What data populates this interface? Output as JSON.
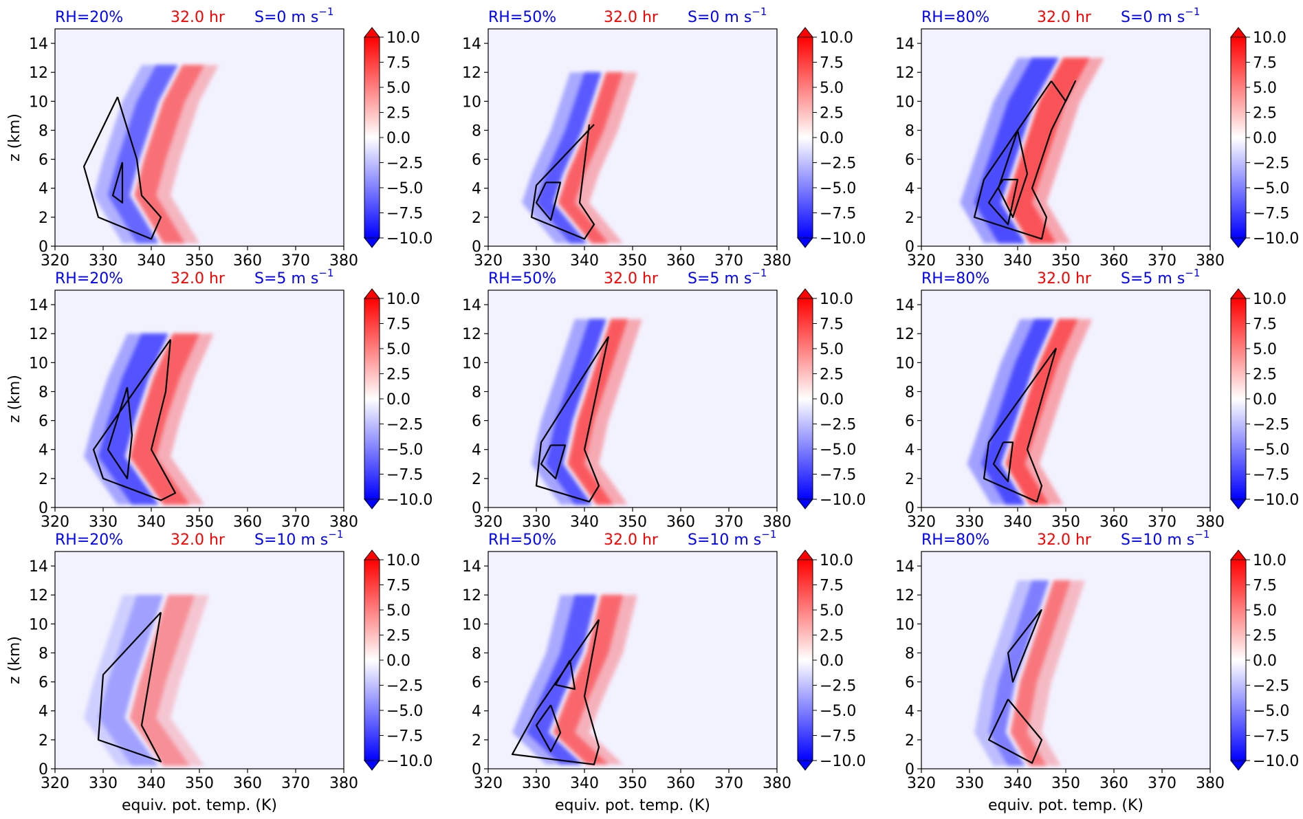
{
  "figure": {
    "xlabel": "equiv. pot. temp. (K)",
    "ylabel": "z (km)",
    "time_label": "32.0 hr"
  },
  "colors": {
    "title_blue": "#0000ff",
    "title_red": "#ff0000",
    "neg": "#0000ff",
    "pos": "#ff0000",
    "background_field": "#f2f2ff",
    "contour": "#000000"
  },
  "colorbar": {
    "ticks": [
      "10.0",
      "7.5",
      "5.0",
      "2.5",
      "0.0",
      "−2.5",
      "−5.0",
      "−7.5",
      "−10.0"
    ],
    "range": [
      -10,
      10
    ],
    "extend": "both"
  },
  "chart_data": [
    {
      "type": "heatmap",
      "rh_label": "RH=20%",
      "time_label": "32.0 hr",
      "shear_label": "S=0 m s",
      "shear_exp": "−1",
      "xlim": [
        320,
        380
      ],
      "ylim": [
        0,
        15
      ],
      "xticks": [
        "320",
        "330",
        "340",
        "350",
        "360",
        "370",
        "380"
      ],
      "yticks": [
        "0",
        "2",
        "4",
        "6",
        "8",
        "10",
        "12",
        "14"
      ],
      "xlabel": "",
      "ylabel": "z (km)",
      "spine": [
        [
          342,
          0.2
        ],
        [
          336,
          3.5
        ],
        [
          338,
          6
        ],
        [
          342,
          10
        ],
        [
          346,
          12.5
        ]
      ],
      "width": 5,
      "neg_int": 0.75,
      "pos_int": 0.7,
      "contours": [
        [
          [
            333,
            10.3
          ],
          [
            326,
            5.5
          ],
          [
            329,
            2
          ],
          [
            340,
            0.5
          ],
          [
            342,
            2
          ],
          [
            338,
            3.5
          ],
          [
            337,
            6
          ],
          [
            333,
            10.3
          ]
        ],
        [
          [
            334,
            5.8
          ],
          [
            332,
            3.5
          ],
          [
            334,
            3
          ],
          [
            334,
            5.8
          ]
        ]
      ]
    },
    {
      "type": "heatmap",
      "rh_label": "RH=50%",
      "time_label": "32.0 hr",
      "shear_label": "S=0 m s",
      "shear_exp": "−1",
      "xlim": [
        320,
        380
      ],
      "ylim": [
        0,
        15
      ],
      "xticks": [
        "320",
        "330",
        "340",
        "350",
        "360",
        "370",
        "380"
      ],
      "yticks": [
        "0",
        "2",
        "4",
        "6",
        "8",
        "10",
        "12",
        "14"
      ],
      "xlabel": "",
      "ylabel": "",
      "spine": [
        [
          341,
          0.2
        ],
        [
          334,
          3
        ],
        [
          336,
          5
        ],
        [
          340,
          8
        ],
        [
          344,
          12
        ]
      ],
      "width": 4,
      "neg_int": 0.85,
      "pos_int": 0.8,
      "contours": [
        [
          [
            342,
            8.4
          ],
          [
            330,
            4.2
          ],
          [
            329,
            2
          ],
          [
            340,
            0.5
          ],
          [
            342,
            1.5
          ],
          [
            339,
            3
          ],
          [
            341,
            8.4
          ]
        ],
        [
          [
            332,
            4.4
          ],
          [
            330,
            3
          ],
          [
            333,
            1.8
          ],
          [
            335,
            4.4
          ],
          [
            332,
            4.4
          ]
        ]
      ]
    },
    {
      "type": "heatmap",
      "rh_label": "RH=80%",
      "time_label": "32.0 hr",
      "shear_label": "S=0 m s",
      "shear_exp": "−1",
      "xlim": [
        320,
        380
      ],
      "ylim": [
        0,
        15
      ],
      "xticks": [
        "320",
        "330",
        "340",
        "350",
        "360",
        "370",
        "380"
      ],
      "yticks": [
        "0",
        "2",
        "4",
        "6",
        "8",
        "10",
        "12",
        "14"
      ],
      "xlabel": "",
      "ylabel": "",
      "spine": [
        [
          342,
          0.2
        ],
        [
          337,
          3
        ],
        [
          340,
          6
        ],
        [
          344,
          10
        ],
        [
          349,
          13
        ]
      ],
      "width": 6,
      "neg_int": 0.95,
      "pos_int": 0.9,
      "contours": [
        [
          [
            347,
            11.4
          ],
          [
            333,
            4.6
          ],
          [
            331,
            2
          ],
          [
            345,
            0.5
          ],
          [
            346,
            2
          ],
          [
            343,
            4
          ],
          [
            347,
            8
          ],
          [
            352,
            11.4
          ],
          [
            350,
            10
          ],
          [
            347,
            11.4
          ]
        ],
        [
          [
            337,
            4.6
          ],
          [
            334,
            3
          ],
          [
            338,
            1.5
          ],
          [
            340,
            4.6
          ],
          [
            337,
            4.6
          ]
        ],
        [
          [
            340,
            8
          ],
          [
            336,
            4
          ],
          [
            339,
            2
          ],
          [
            342,
            5
          ],
          [
            340,
            8
          ]
        ]
      ]
    },
    {
      "type": "heatmap",
      "rh_label": "RH=20%",
      "time_label": "32.0 hr",
      "shear_label": "S=5 m s",
      "shear_exp": "−1",
      "xlim": [
        320,
        380
      ],
      "ylim": [
        0,
        15
      ],
      "xticks": [
        "320",
        "330",
        "340",
        "350",
        "360",
        "370",
        "380"
      ],
      "yticks": [
        "0",
        "2",
        "4",
        "6",
        "8",
        "10",
        "12",
        "14"
      ],
      "xlabel": "",
      "ylabel": "z (km)",
      "spine": [
        [
          342,
          0.2
        ],
        [
          335,
          3.5
        ],
        [
          337,
          6
        ],
        [
          340,
          9
        ],
        [
          344,
          12
        ]
      ],
      "width": 6,
      "neg_int": 0.9,
      "pos_int": 0.8,
      "contours": [
        [
          [
            344,
            11.6
          ],
          [
            328,
            4
          ],
          [
            330,
            2
          ],
          [
            342,
            0.5
          ],
          [
            345,
            1
          ],
          [
            340,
            4
          ],
          [
            343,
            8
          ],
          [
            344,
            11.6
          ]
        ],
        [
          [
            335,
            8.3
          ],
          [
            331,
            4
          ],
          [
            335,
            2
          ],
          [
            336,
            5
          ],
          [
            335,
            8.3
          ]
        ]
      ]
    },
    {
      "type": "heatmap",
      "rh_label": "RH=50%",
      "time_label": "32.0 hr",
      "shear_label": "S=5 m s",
      "shear_exp": "−1",
      "xlim": [
        320,
        380
      ],
      "ylim": [
        0,
        15
      ],
      "xticks": [
        "320",
        "330",
        "340",
        "350",
        "360",
        "370",
        "380"
      ],
      "yticks": [
        "0",
        "2",
        "4",
        "6",
        "8",
        "10",
        "12",
        "14"
      ],
      "xlabel": "",
      "ylabel": "",
      "spine": [
        [
          342,
          0.2
        ],
        [
          336,
          3
        ],
        [
          338,
          6
        ],
        [
          341,
          9
        ],
        [
          345,
          13
        ]
      ],
      "width": 4,
      "neg_int": 0.9,
      "pos_int": 0.85,
      "contours": [
        [
          [
            345,
            11.8
          ],
          [
            331,
            4.5
          ],
          [
            330,
            1.5
          ],
          [
            341,
            0.4
          ],
          [
            343,
            1.5
          ],
          [
            340,
            4
          ],
          [
            345,
            11.8
          ]
        ],
        [
          [
            333,
            4.3
          ],
          [
            331,
            3
          ],
          [
            334,
            2
          ],
          [
            336,
            4.3
          ],
          [
            333,
            4.3
          ]
        ]
      ]
    },
    {
      "type": "heatmap",
      "rh_label": "RH=80%",
      "time_label": "32.0 hr",
      "shear_label": "S=5 m s",
      "shear_exp": "−1",
      "xlim": [
        320,
        380
      ],
      "ylim": [
        0,
        15
      ],
      "xticks": [
        "320",
        "330",
        "340",
        "350",
        "360",
        "370",
        "380"
      ],
      "yticks": [
        "0",
        "2",
        "4",
        "6",
        "8",
        "10",
        "12",
        "14"
      ],
      "xlabel": "",
      "ylabel": "",
      "spine": [
        [
          342,
          0.2
        ],
        [
          337,
          3
        ],
        [
          340,
          6
        ],
        [
          344,
          10
        ],
        [
          348,
          13
        ]
      ],
      "width": 4.5,
      "neg_int": 0.95,
      "pos_int": 0.9,
      "contours": [
        [
          [
            348,
            11
          ],
          [
            334,
            4.5
          ],
          [
            333,
            2
          ],
          [
            344,
            0.4
          ],
          [
            345,
            1.5
          ],
          [
            342,
            4
          ],
          [
            348,
            11
          ]
        ],
        [
          [
            337,
            4.5
          ],
          [
            335,
            3
          ],
          [
            338,
            1.8
          ],
          [
            339,
            4.5
          ],
          [
            337,
            4.5
          ]
        ]
      ]
    },
    {
      "type": "heatmap",
      "rh_label": "RH=20%",
      "time_label": "32.0 hr",
      "shear_label": "S=10 m s",
      "shear_exp": "−1",
      "xlim": [
        320,
        380
      ],
      "ylim": [
        0,
        15
      ],
      "xticks": [
        "320",
        "330",
        "340",
        "350",
        "360",
        "370",
        "380"
      ],
      "yticks": [
        "0",
        "2",
        "4",
        "6",
        "8",
        "10",
        "12",
        "14"
      ],
      "xlabel": "equiv. pot. temp. (K)",
      "ylabel": "z (km)",
      "spine": [
        [
          342,
          0.2
        ],
        [
          335,
          3.5
        ],
        [
          337,
          6
        ],
        [
          340,
          9
        ],
        [
          343,
          12
        ]
      ],
      "width": 6,
      "neg_int": 0.4,
      "pos_int": 0.5,
      "contours": [
        [
          [
            342,
            10.8
          ],
          [
            330,
            6.5
          ],
          [
            329,
            2
          ],
          [
            342,
            0.5
          ],
          [
            338,
            3
          ],
          [
            342,
            10.8
          ]
        ]
      ]
    },
    {
      "type": "heatmap",
      "rh_label": "RH=50%",
      "time_label": "32.0 hr",
      "shear_label": "S=10 m s",
      "shear_exp": "−1",
      "xlim": [
        320,
        380
      ],
      "ylim": [
        0,
        15
      ],
      "xticks": [
        "320",
        "330",
        "340",
        "350",
        "360",
        "370",
        "380"
      ],
      "yticks": [
        "0",
        "2",
        "4",
        "6",
        "8",
        "10",
        "12",
        "14"
      ],
      "xlabel": "equiv. pot. temp. (K)",
      "ylabel": "",
      "spine": [
        [
          340,
          0.3
        ],
        [
          333,
          2.5
        ],
        [
          336,
          5
        ],
        [
          340,
          8
        ],
        [
          343,
          12
        ]
      ],
      "width": 5,
      "neg_int": 0.85,
      "pos_int": 0.75,
      "contours": [
        [
          [
            343,
            10.3
          ],
          [
            330,
            4
          ],
          [
            325,
            1
          ],
          [
            342,
            0.3
          ],
          [
            343,
            1.5
          ],
          [
            340,
            5
          ],
          [
            343,
            10.3
          ]
        ],
        [
          [
            337,
            7.5
          ],
          [
            334,
            5.8
          ],
          [
            338,
            5.5
          ],
          [
            337,
            7.5
          ]
        ],
        [
          [
            333,
            4.4
          ],
          [
            330,
            3
          ],
          [
            333,
            1.2
          ],
          [
            335,
            2.5
          ],
          [
            333,
            4.4
          ]
        ]
      ]
    },
    {
      "type": "heatmap",
      "rh_label": "RH=80%",
      "time_label": "32.0 hr",
      "shear_label": "S=10 m s",
      "shear_exp": "−1",
      "xlim": [
        320,
        380
      ],
      "ylim": [
        0,
        15
      ],
      "xticks": [
        "320",
        "330",
        "340",
        "350",
        "360",
        "370",
        "380"
      ],
      "yticks": [
        "0",
        "2",
        "4",
        "6",
        "8",
        "10",
        "12",
        "14"
      ],
      "xlabel": "equiv. pot. temp. (K)",
      "ylabel": "",
      "spine": [
        [
          342,
          0.2
        ],
        [
          338,
          2.5
        ],
        [
          340,
          6
        ],
        [
          344,
          10
        ],
        [
          347,
          13
        ]
      ],
      "width": 4,
      "neg_int": 0.6,
      "pos_int": 0.65,
      "contours": [
        [
          [
            345,
            11
          ],
          [
            339,
            6
          ],
          [
            338,
            8
          ],
          [
            345,
            11
          ]
        ],
        [
          [
            338,
            4.8
          ],
          [
            334,
            2
          ],
          [
            343,
            0.4
          ],
          [
            345,
            2
          ],
          [
            338,
            4.8
          ]
        ]
      ]
    }
  ]
}
